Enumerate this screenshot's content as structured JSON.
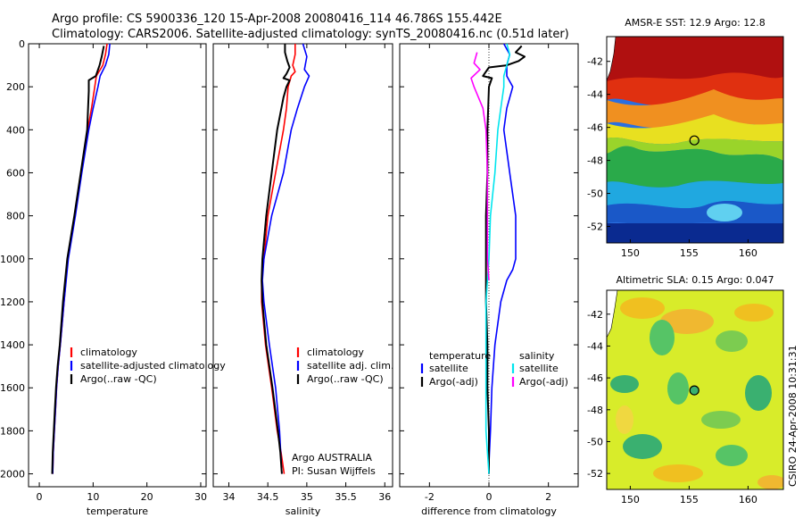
{
  "figure": {
    "title_line1": "Argo profile: CS 5900336_120 15-Apr-2008 20080416_114 46.786S 155.442E",
    "title_line2": "Climatology: CARS2006. Satellite-adjusted climatology: synTS_20080416.nc (0.51d later)",
    "credit_line1": "Argo AUSTRALIA",
    "credit_line2": "PI: Susan Wijffels",
    "side_label": "CSIRO 24-Apr-2008 10:31:31"
  },
  "colors": {
    "climatology": "#ff0000",
    "satellite": "#0000ff",
    "argo": "#000000",
    "salinity_satellite": "#00e5ee",
    "salinity_argo": "#ff00ff"
  },
  "chart_data": [
    {
      "id": "temperature",
      "type": "line",
      "xlabel": "temperature",
      "ylabel": "",
      "xlim": [
        -2,
        31
      ],
      "ylim": [
        2060,
        0
      ],
      "xticks": [
        0,
        10,
        20,
        30
      ],
      "yticks": [
        0,
        200,
        400,
        600,
        800,
        1000,
        1200,
        1400,
        1600,
        1800,
        2000
      ],
      "legend": {
        "placement": "lower-middle",
        "entries": [
          "climatology",
          "satellite-adjusted climatology",
          "Argo(..raw -QC)"
        ]
      },
      "series": [
        {
          "name": "climatology",
          "color": "#ff0000",
          "x": [
            12.6,
            12.3,
            11.8,
            10.6,
            10.3,
            9.7,
            9.0,
            7.8,
            6.6,
            5.3,
            4.6,
            3.9,
            3.5,
            3.2,
            3.0,
            2.8,
            2.6,
            2.5
          ],
          "y": [
            0,
            50,
            100,
            150,
            200,
            300,
            400,
            600,
            800,
            1000,
            1200,
            1400,
            1500,
            1600,
            1700,
            1800,
            1900,
            2000
          ]
        },
        {
          "name": "satellite-adjusted climatology",
          "color": "#0000ff",
          "x": [
            13.1,
            12.9,
            12.3,
            11.3,
            10.9,
            10.0,
            9.2,
            7.9,
            6.7,
            5.4,
            4.6,
            3.9,
            3.5,
            3.2,
            3.0,
            2.8,
            2.6,
            2.5
          ],
          "y": [
            0,
            50,
            100,
            150,
            200,
            300,
            400,
            600,
            800,
            1000,
            1200,
            1400,
            1500,
            1600,
            1700,
            1800,
            1900,
            2000
          ]
        },
        {
          "name": "Argo(..raw -QC)",
          "color": "#000000",
          "x": [
            12.0,
            11.6,
            11.2,
            10.5,
            9.2,
            9.2,
            8.9,
            7.7,
            6.5,
            5.2,
            4.4,
            3.8,
            3.4,
            3.1,
            2.9,
            2.7,
            2.5,
            2.4
          ],
          "y": [
            10,
            60,
            100,
            150,
            170,
            220,
            400,
            600,
            800,
            1000,
            1200,
            1400,
            1500,
            1600,
            1700,
            1800,
            1900,
            2000
          ]
        }
      ]
    },
    {
      "id": "salinity",
      "type": "line",
      "xlabel": "salinity",
      "ylabel": "",
      "xlim": [
        33.8,
        36.1
      ],
      "ylim": [
        2060,
        0
      ],
      "xticks": [
        34,
        34.5,
        35,
        35.5,
        36
      ],
      "legend": {
        "placement": "lower-right",
        "entries": [
          "climatology",
          "satellite adj. clim.",
          "Argo(..raw -QC)"
        ]
      },
      "series": [
        {
          "name": "climatology",
          "color": "#ff0000",
          "x": [
            34.85,
            34.85,
            34.82,
            34.85,
            34.8,
            34.76,
            34.74,
            34.7,
            34.6,
            34.5,
            34.45,
            34.42,
            34.42,
            34.47,
            34.55,
            34.62,
            34.67,
            34.71
          ],
          "y": [
            0,
            50,
            100,
            130,
            150,
            200,
            300,
            400,
            600,
            800,
            1000,
            1100,
            1200,
            1400,
            1600,
            1800,
            1900,
            2000
          ]
        },
        {
          "name": "satellite adj. clim.",
          "color": "#0000ff",
          "x": [
            34.95,
            35.0,
            34.97,
            35.03,
            34.97,
            34.88,
            34.8,
            34.7,
            34.55,
            34.45,
            34.43,
            34.45,
            34.52,
            34.6,
            34.65,
            34.68
          ],
          "y": [
            0,
            60,
            120,
            150,
            200,
            300,
            400,
            600,
            800,
            1000,
            1100,
            1200,
            1400,
            1600,
            1800,
            2000
          ]
        },
        {
          "name": "Argo(..raw -QC)",
          "color": "#000000",
          "x": [
            34.72,
            34.72,
            34.75,
            34.78,
            34.74,
            34.7,
            34.78,
            34.74,
            34.7,
            34.62,
            34.55,
            34.48,
            34.43,
            34.42,
            34.43,
            34.48,
            34.56,
            34.63,
            34.66,
            34.68
          ],
          "y": [
            0,
            40,
            80,
            110,
            140,
            160,
            170,
            200,
            250,
            400,
            600,
            800,
            1000,
            1100,
            1200,
            1400,
            1600,
            1800,
            1900,
            2000
          ]
        }
      ]
    },
    {
      "id": "difference",
      "type": "line",
      "xlabel": "difference from climatology",
      "ylabel": "",
      "xlim": [
        -3,
        3
      ],
      "ylim": [
        2060,
        0
      ],
      "xticks": [
        -2,
        0,
        2
      ],
      "zero_line": true,
      "legend": {
        "placement": "lower-middle",
        "temperature_header": "temperature",
        "salinity_header": "salinity",
        "temperature_entries": [
          "satellite",
          "Argo(-adj)"
        ],
        "salinity_entries": [
          "satellite",
          "Argo(-adj)"
        ]
      },
      "series": [
        {
          "name": "temperature satellite",
          "color": "#0000ff",
          "x": [
            0.5,
            0.7,
            0.6,
            0.6,
            0.8,
            0.6,
            0.5,
            0.6,
            0.7,
            0.9,
            0.9,
            0.8,
            0.6,
            0.4,
            0.2,
            0.1,
            0.05,
            0.0,
            0.0
          ],
          "y": [
            0,
            50,
            100,
            150,
            200,
            300,
            400,
            500,
            600,
            800,
            1000,
            1050,
            1100,
            1200,
            1400,
            1600,
            1800,
            1950,
            2000
          ]
        },
        {
          "name": "temperature Argo(-adj)",
          "color": "#000000",
          "x": [
            1.1,
            0.9,
            1.2,
            1.0,
            0.6,
            0.0,
            -0.2,
            0.1,
            0.0,
            -0.05,
            -0.05,
            -0.1,
            -0.1,
            -0.1,
            -0.1,
            -0.05,
            -0.05,
            0.0,
            0.0
          ],
          "y": [
            10,
            40,
            60,
            80,
            100,
            110,
            150,
            160,
            200,
            400,
            600,
            800,
            1000,
            1100,
            1200,
            1400,
            1600,
            1800,
            2000
          ]
        },
        {
          "name": "salinity satellite",
          "color": "#00e5ee",
          "x": [
            0.6,
            0.7,
            0.6,
            0.5,
            0.5,
            0.4,
            0.3,
            0.2,
            0.05,
            0.0,
            -0.05,
            -0.1,
            -0.1,
            -0.1,
            -0.1,
            0.0
          ],
          "y": [
            0,
            50,
            100,
            150,
            200,
            300,
            400,
            600,
            800,
            1000,
            1100,
            1200,
            1400,
            1600,
            1800,
            2000
          ]
        },
        {
          "name": "salinity Argo(-adj)",
          "color": "#ff00ff",
          "x": [
            -0.4,
            -0.5,
            -0.3,
            -0.6,
            -0.5,
            -0.2,
            -0.1,
            -0.05,
            -0.05,
            -0.05,
            0.0
          ],
          "y": [
            40,
            90,
            120,
            160,
            200,
            300,
            400,
            600,
            800,
            1000,
            1100
          ]
        }
      ]
    },
    {
      "id": "sst-map",
      "type": "heatmap",
      "title": "AMSR-E SST: 12.9 Argo: 12.8",
      "xlim": [
        148,
        163
      ],
      "ylim": [
        -53,
        -40.5
      ],
      "xticks": [
        150,
        155,
        160
      ],
      "yticks": [
        -42,
        -44,
        -46,
        -48,
        -50,
        -52
      ],
      "marker": {
        "lon": 155.442,
        "lat": -46.786
      }
    },
    {
      "id": "sla-map",
      "type": "heatmap",
      "title": "Altimetric SLA: 0.15 Argo: 0.047",
      "xlim": [
        148,
        163
      ],
      "ylim": [
        -53,
        -40.5
      ],
      "xticks": [
        150,
        155,
        160
      ],
      "yticks": [
        -42,
        -44,
        -46,
        -48,
        -50,
        -52
      ],
      "marker": {
        "lon": 155.442,
        "lat": -46.786
      }
    }
  ]
}
